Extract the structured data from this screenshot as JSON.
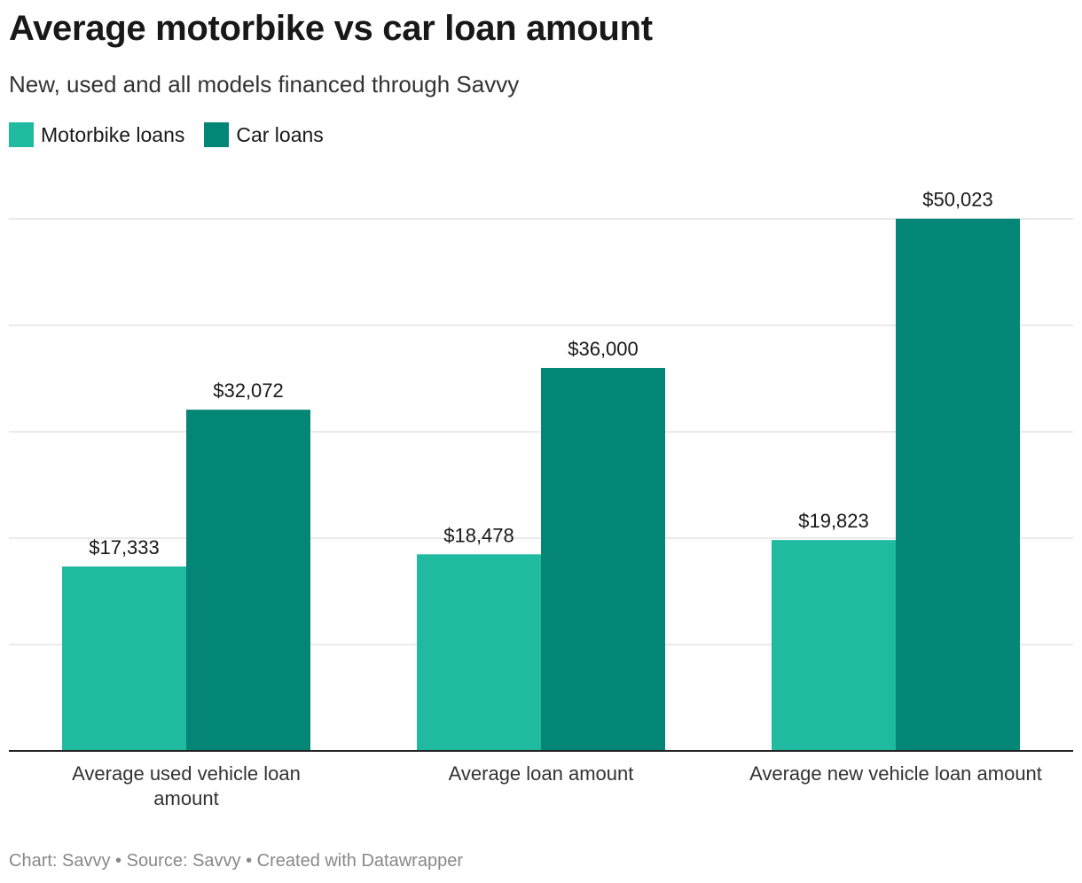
{
  "chart_data": {
    "type": "bar",
    "title": "Average motorbike vs car loan amount",
    "subtitle": "New, used and all models financed through Savvy",
    "categories": [
      "Average used vehicle loan amount",
      "Average loan amount",
      "Average new vehicle loan amount"
    ],
    "category_lines": [
      [
        "Average used vehicle loan",
        "amount"
      ],
      [
        "Average loan amount"
      ],
      [
        "Average new vehicle loan amount"
      ]
    ],
    "series": [
      {
        "name": "Motorbike loans",
        "color": "#1fbaa0",
        "values": [
          17333,
          18478,
          19823
        ],
        "labels": [
          "$17,333",
          "$18,478",
          "$19,823"
        ]
      },
      {
        "name": "Car loans",
        "color": "#038676",
        "values": [
          32072,
          36000,
          50023
        ],
        "labels": [
          "$32,072",
          "$36,000",
          "$50,023"
        ]
      }
    ],
    "ylim": [
      0,
      50000
    ],
    "grid_step": 10000,
    "grid": true,
    "legend_position": "top-left",
    "xlabel": "",
    "ylabel": ""
  },
  "footer": "Chart: Savvy • Source: Savvy • Created with Datawrapper"
}
